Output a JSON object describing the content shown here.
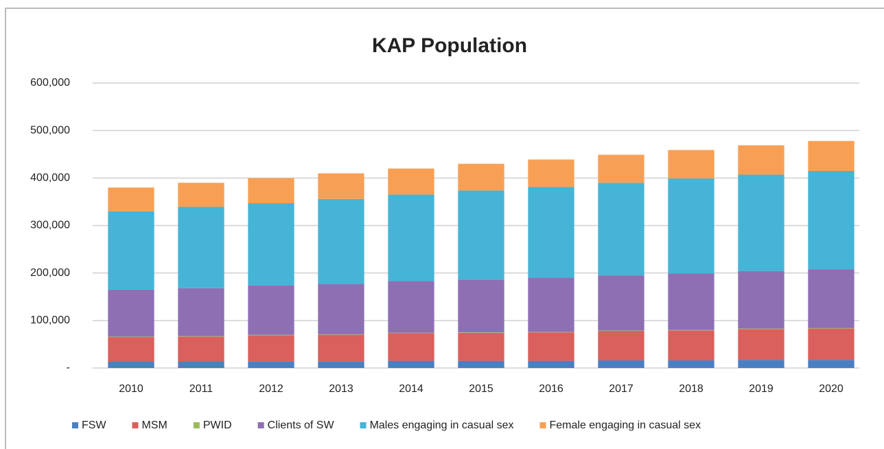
{
  "chart_data": {
    "type": "stacked_bar",
    "title": "KAP Population",
    "categories": [
      "2010",
      "2011",
      "2012",
      "2013",
      "2014",
      "2015",
      "2016",
      "2017",
      "2018",
      "2019",
      "2020"
    ],
    "series": [
      {
        "name": "FSW",
        "color": "#4a7fc1",
        "values": [
          13000,
          13000,
          14000,
          14000,
          15000,
          15000,
          15000,
          16000,
          16000,
          17000,
          17000
        ]
      },
      {
        "name": "MSM",
        "color": "#d9605c",
        "values": [
          52000,
          53000,
          55000,
          56000,
          58000,
          59000,
          60000,
          62000,
          63000,
          65000,
          66000
        ]
      },
      {
        "name": "PWID",
        "color": "#9bbb59",
        "values": [
          1000,
          1000,
          1000,
          1000,
          1000,
          1000,
          1000,
          1000,
          1000,
          1000,
          1000
        ]
      },
      {
        "name": "Clients of SW",
        "color": "#8e6fb4",
        "values": [
          99000,
          101000,
          104000,
          106000,
          109000,
          111000,
          114000,
          116000,
          119000,
          121000,
          124000
        ]
      },
      {
        "name": "Males engaging in casual sex",
        "color": "#45b4d6",
        "values": [
          165000,
          171000,
          173000,
          179000,
          182000,
          188000,
          191000,
          195000,
          200000,
          203000,
          207000
        ]
      },
      {
        "name": "Female engaging in casual sex",
        "color": "#f7a055",
        "values": [
          50000,
          51000,
          53000,
          54000,
          55000,
          56000,
          58000,
          59000,
          60000,
          62000,
          63000
        ]
      }
    ],
    "ylim": [
      0,
      600000
    ],
    "yticks": [
      {
        "value": 0,
        "label": "-"
      },
      {
        "value": 100000,
        "label": "100,000"
      },
      {
        "value": 200000,
        "label": "200,000"
      },
      {
        "value": 300000,
        "label": "300,000"
      },
      {
        "value": 400000,
        "label": "400,000"
      },
      {
        "value": 500000,
        "label": "500,000"
      },
      {
        "value": 600000,
        "label": "600,000"
      }
    ],
    "grid": true,
    "legend": "bottom"
  }
}
